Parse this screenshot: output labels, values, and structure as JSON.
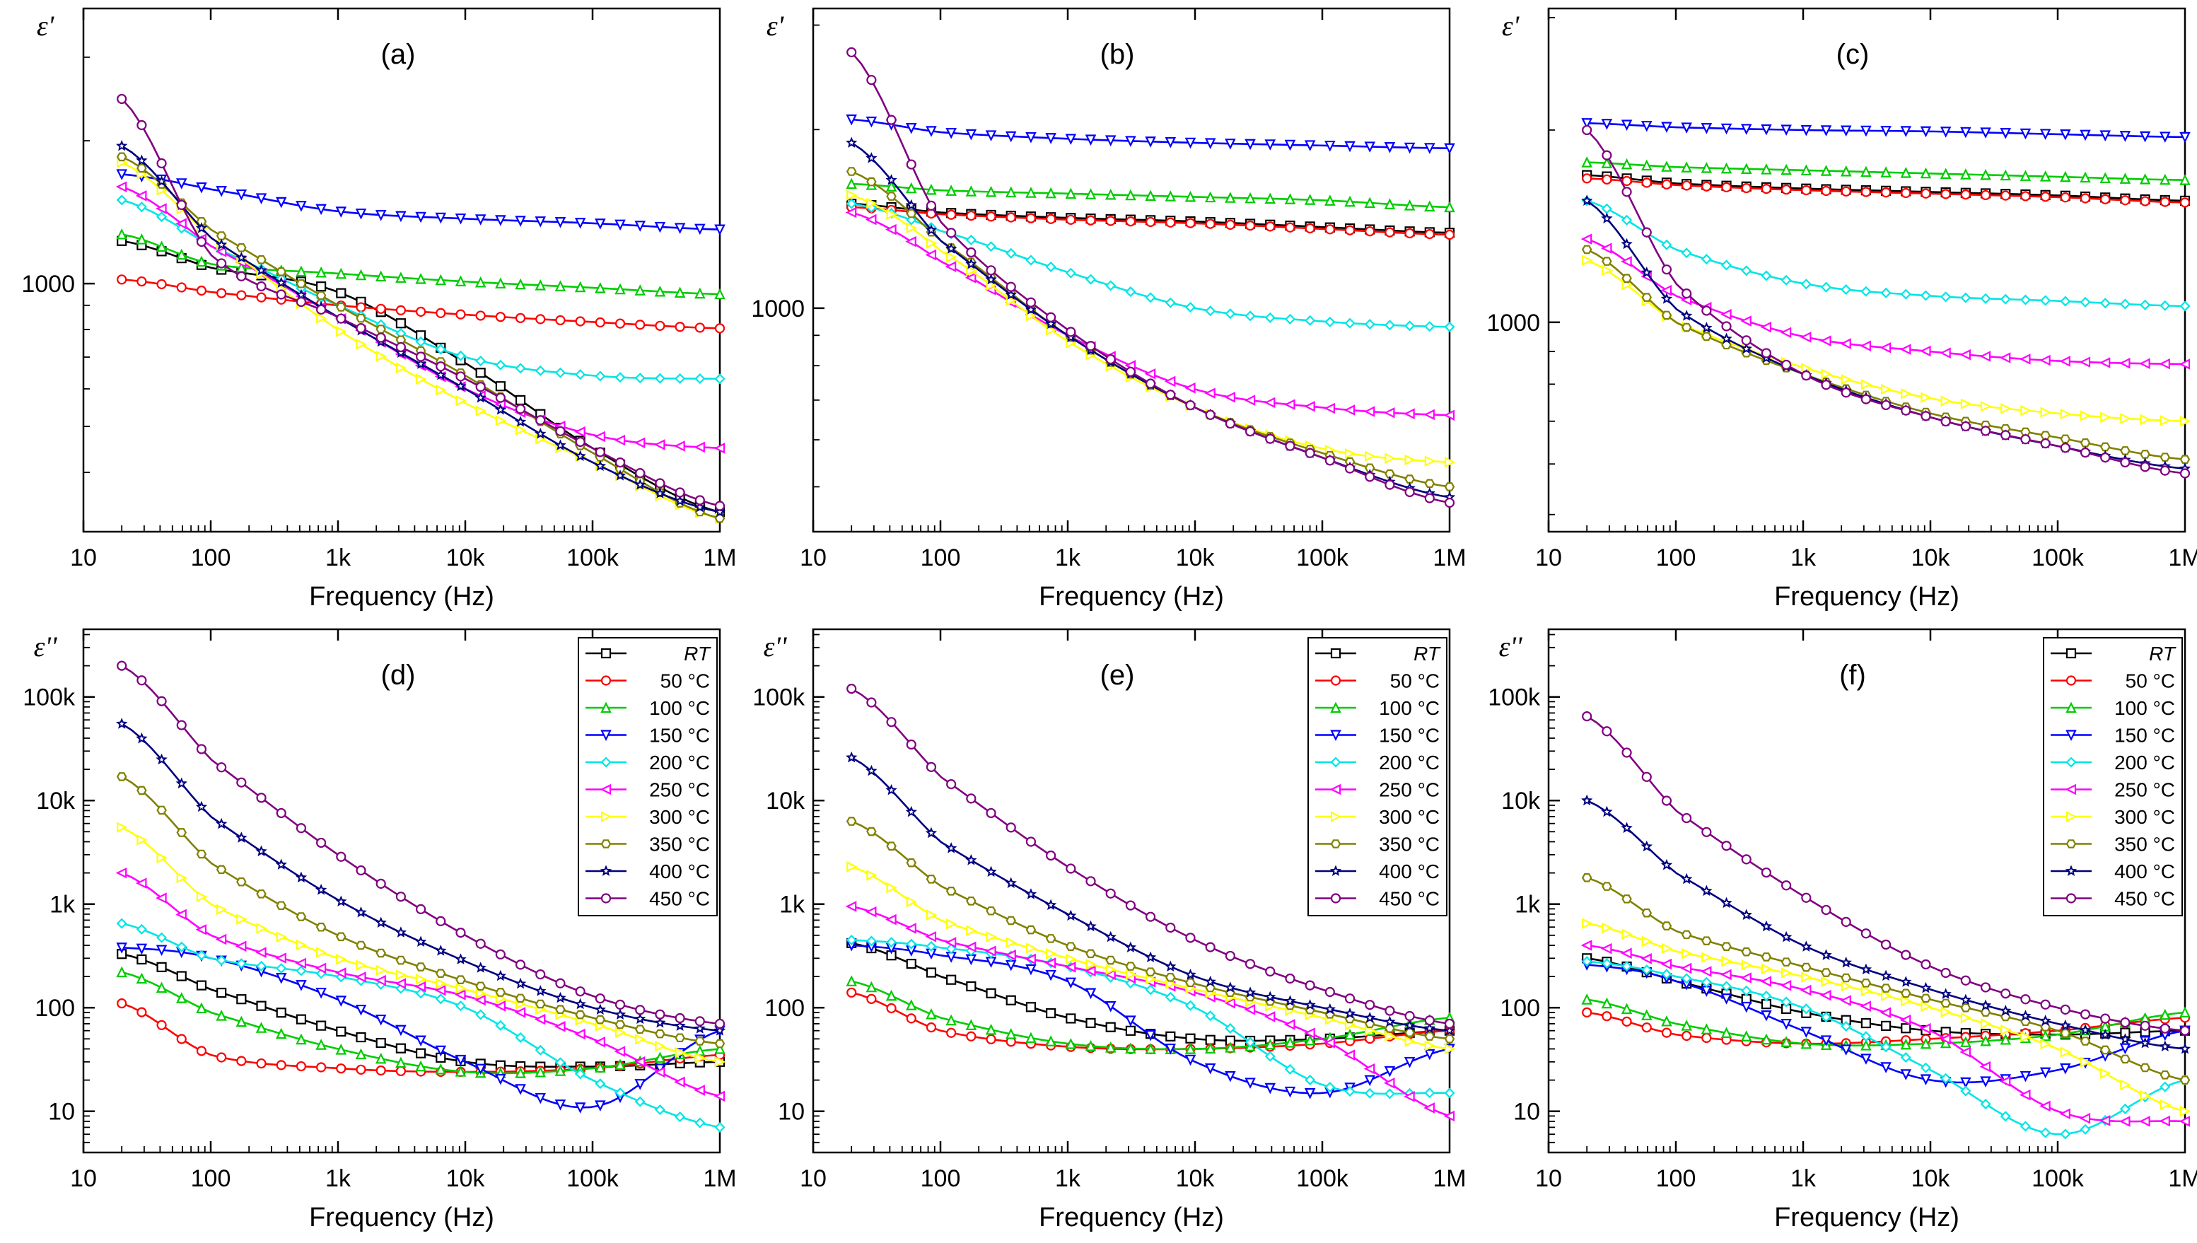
{
  "figure": {
    "colors": {
      "RT": "#000000",
      "50": "#ff0000",
      "100": "#00cc00",
      "150": "#0000ff",
      "200": "#00e5e5",
      "250": "#ff00ff",
      "300": "#ffff00",
      "350": "#808000",
      "400": "#000080",
      "450": "#800080"
    }
  },
  "chart_data": [
    {
      "panel": "(a)",
      "type": "line",
      "ylabel": "ε'",
      "xlabel": "Frequency (Hz)",
      "xscale": "log",
      "yscale": "log",
      "xlim": [
        10,
        1000000
      ],
      "ylim": [
        300,
        3800
      ],
      "xticks": [
        "10",
        "100",
        "1k",
        "10k",
        "100k",
        "1M"
      ],
      "yticks": [
        "1000"
      ],
      "x": [
        20,
        100,
        1000,
        10000,
        100000,
        1000000
      ],
      "series": [
        {
          "name": "RT",
          "values": [
            1230,
            1080,
            960,
            680,
            450,
            330
          ]
        },
        {
          "name": "50 °C",
          "values": [
            1020,
            960,
            900,
            860,
            830,
            805
          ]
        },
        {
          "name": "100 °C",
          "values": [
            1270,
            1100,
            1050,
            1010,
            980,
            950
          ]
        },
        {
          "name": "150 °C",
          "values": [
            1700,
            1580,
            1420,
            1370,
            1340,
            1300
          ]
        },
        {
          "name": "200 °C",
          "values": [
            1500,
            1200,
            900,
            700,
            640,
            630
          ]
        },
        {
          "name": "250 °C",
          "values": [
            1600,
            1200,
            850,
            600,
            480,
            450
          ]
        },
        {
          "name": "300 °C",
          "values": [
            1800,
            1250,
            800,
            560,
            420,
            320
          ]
        },
        {
          "name": "350 °C",
          "values": [
            1850,
            1300,
            900,
            640,
            440,
            320
          ]
        },
        {
          "name": "400 °C",
          "values": [
            1950,
            1250,
            850,
            600,
            420,
            330
          ]
        },
        {
          "name": "450 °C",
          "values": [
            2450,
            1150,
            850,
            630,
            450,
            340
          ]
        }
      ]
    },
    {
      "panel": "(b)",
      "type": "line",
      "ylabel": "ε'",
      "xlabel": "Frequency (Hz)",
      "xscale": "log",
      "yscale": "log",
      "xlim": [
        10,
        1000000
      ],
      "ylim": [
        420,
        3200
      ],
      "xticks": [
        "10",
        "100",
        "1k",
        "10k",
        "100k",
        "1M"
      ],
      "yticks": [
        "1000"
      ],
      "x": [
        20,
        100,
        1000,
        10000,
        100000,
        1000000
      ],
      "series": [
        {
          "name": "RT",
          "values": [
            1500,
            1450,
            1420,
            1400,
            1370,
            1340
          ]
        },
        {
          "name": "50 °C",
          "values": [
            1480,
            1440,
            1410,
            1390,
            1360,
            1330
          ]
        },
        {
          "name": "100 °C",
          "values": [
            1620,
            1580,
            1560,
            1540,
            1520,
            1480
          ]
        },
        {
          "name": "150 °C",
          "values": [
            2080,
            1980,
            1930,
            1900,
            1880,
            1860
          ]
        },
        {
          "name": "200 °C",
          "values": [
            1500,
            1350,
            1150,
            1000,
            950,
            930
          ]
        },
        {
          "name": "250 °C",
          "values": [
            1450,
            1200,
            900,
            730,
            680,
            660
          ]
        },
        {
          "name": "300 °C",
          "values": [
            1550,
            1250,
            880,
            680,
            580,
            550
          ]
        },
        {
          "name": "350 °C",
          "values": [
            1700,
            1300,
            900,
            680,
            570,
            500
          ]
        },
        {
          "name": "400 °C",
          "values": [
            1900,
            1300,
            900,
            680,
            560,
            480
          ]
        },
        {
          "name": "450 °C",
          "values": [
            2700,
            1400,
            920,
            680,
            560,
            470
          ]
        }
      ]
    },
    {
      "panel": "(c)",
      "type": "line",
      "ylabel": "ε'",
      "xlabel": "Frequency (Hz)",
      "xscale": "log",
      "yscale": "log",
      "xlim": [
        10,
        1000000
      ],
      "ylim": [
        470,
        3100
      ],
      "xticks": [
        "10",
        "100",
        "1k",
        "10k",
        "100k",
        "1M"
      ],
      "yticks": [
        "1000"
      ],
      "x": [
        20,
        100,
        1000,
        10000,
        100000,
        1000000
      ],
      "series": [
        {
          "name": "RT",
          "values": [
            1700,
            1650,
            1620,
            1600,
            1580,
            1550
          ]
        },
        {
          "name": "50 °C",
          "values": [
            1680,
            1640,
            1610,
            1590,
            1570,
            1540
          ]
        },
        {
          "name": "100 °C",
          "values": [
            1780,
            1750,
            1730,
            1710,
            1690,
            1670
          ]
        },
        {
          "name": "150 °C",
          "values": [
            2050,
            2020,
            2000,
            1990,
            1970,
            1950
          ]
        },
        {
          "name": "200 °C",
          "values": [
            1550,
            1300,
            1150,
            1100,
            1080,
            1060
          ]
        },
        {
          "name": "250 °C",
          "values": [
            1350,
            1100,
            950,
            900,
            870,
            860
          ]
        },
        {
          "name": "300 °C",
          "values": [
            1250,
            1000,
            850,
            760,
            720,
            700
          ]
        },
        {
          "name": "350 °C",
          "values": [
            1300,
            1000,
            830,
            720,
            660,
            610
          ]
        },
        {
          "name": "400 °C",
          "values": [
            1550,
            1050,
            830,
            710,
            640,
            590
          ]
        },
        {
          "name": "450 °C",
          "values": [
            2000,
            1150,
            830,
            710,
            640,
            580
          ]
        }
      ]
    },
    {
      "panel": "(d)",
      "type": "line",
      "ylabel": "ε''",
      "xlabel": "Frequency (Hz)",
      "xscale": "log",
      "yscale": "log",
      "xlim": [
        10,
        1000000
      ],
      "ylim": [
        4,
        450000
      ],
      "xticks": [
        "10",
        "100",
        "1k",
        "10k",
        "100k",
        "1M"
      ],
      "yticks": [
        "10",
        "100",
        "1k",
        "10k",
        "100k"
      ],
      "x": [
        20,
        100,
        1000,
        10000,
        100000,
        1000000
      ],
      "series": [
        {
          "name": "RT",
          "values": [
            330,
            150,
            60,
            30,
            27,
            30
          ]
        },
        {
          "name": "50 °C",
          "values": [
            110,
            35,
            26,
            24,
            26,
            35
          ]
        },
        {
          "name": "100 °C",
          "values": [
            220,
            90,
            40,
            24,
            26,
            40
          ]
        },
        {
          "name": "150 °C",
          "values": [
            380,
            300,
            120,
            30,
            11,
            60
          ]
        },
        {
          "name": "200 °C",
          "values": [
            650,
            300,
            200,
            100,
            20,
            7
          ]
        },
        {
          "name": "250 °C",
          "values": [
            2000,
            500,
            220,
            130,
            50,
            14
          ]
        },
        {
          "name": "300 °C",
          "values": [
            5500,
            1000,
            300,
            150,
            70,
            30
          ]
        },
        {
          "name": "350 °C",
          "values": [
            17000,
            2500,
            500,
            180,
            80,
            45
          ]
        },
        {
          "name": "400 °C",
          "values": [
            55000,
            7000,
            1100,
            280,
            100,
            60
          ]
        },
        {
          "name": "450 °C",
          "values": [
            200000,
            25000,
            3000,
            500,
            130,
            70
          ]
        }
      ],
      "legend": [
        "RT",
        "50 °C",
        "100 °C",
        "150 °C",
        "200 °C",
        "250 °C",
        "300 °C",
        "350 °C",
        "400 °C",
        "450 °C"
      ]
    },
    {
      "panel": "(e)",
      "type": "line",
      "ylabel": "ε''",
      "xlabel": "Frequency (Hz)",
      "xscale": "log",
      "yscale": "log",
      "xlim": [
        10,
        1000000
      ],
      "ylim": [
        4,
        450000
      ],
      "xticks": [
        "10",
        "100",
        "1k",
        "10k",
        "100k",
        "1M"
      ],
      "yticks": [
        "10",
        "100",
        "1k",
        "10k",
        "100k"
      ],
      "x": [
        20,
        100,
        1000,
        10000,
        100000,
        1000000
      ],
      "series": [
        {
          "name": "RT",
          "values": [
            420,
            200,
            80,
            50,
            50,
            60
          ]
        },
        {
          "name": "50 °C",
          "values": [
            140,
            60,
            42,
            40,
            45,
            60
          ]
        },
        {
          "name": "100 °C",
          "values": [
            180,
            80,
            45,
            40,
            50,
            80
          ]
        },
        {
          "name": "150 °C",
          "values": [
            400,
            320,
            180,
            30,
            15,
            40
          ]
        },
        {
          "name": "200 °C",
          "values": [
            450,
            380,
            250,
            100,
            18,
            15
          ]
        },
        {
          "name": "250 °C",
          "values": [
            950,
            450,
            250,
            140,
            50,
            9
          ]
        },
        {
          "name": "300 °C",
          "values": [
            2300,
            700,
            300,
            150,
            80,
            40
          ]
        },
        {
          "name": "350 °C",
          "values": [
            6300,
            1500,
            400,
            170,
            90,
            50
          ]
        },
        {
          "name": "400 °C",
          "values": [
            26000,
            4000,
            800,
            200,
            100,
            60
          ]
        },
        {
          "name": "450 °C",
          "values": [
            120000,
            17000,
            2300,
            450,
            150,
            70
          ]
        }
      ],
      "legend": [
        "RT",
        "50 °C",
        "100 °C",
        "150 °C",
        "200 °C",
        "250 °C",
        "300 °C",
        "350 °C",
        "400 °C",
        "450 °C"
      ]
    },
    {
      "panel": "(f)",
      "type": "line",
      "ylabel": "ε''",
      "xlabel": "Frequency (Hz)",
      "xscale": "log",
      "yscale": "log",
      "xlim": [
        10,
        1000000
      ],
      "ylim": [
        4,
        450000
      ],
      "xticks": [
        "10",
        "100",
        "1k",
        "10k",
        "100k",
        "1M"
      ],
      "yticks": [
        "10",
        "100",
        "1k",
        "10k",
        "100k"
      ],
      "x": [
        20,
        100,
        1000,
        10000,
        100000,
        1000000
      ],
      "series": [
        {
          "name": "RT",
          "values": [
            300,
            180,
            90,
            60,
            55,
            60
          ]
        },
        {
          "name": "50 °C",
          "values": [
            90,
            55,
            45,
            50,
            60,
            80
          ]
        },
        {
          "name": "100 °C",
          "values": [
            120,
            70,
            45,
            45,
            55,
            90
          ]
        },
        {
          "name": "150 °C",
          "values": [
            260,
            180,
            60,
            20,
            25,
            60
          ]
        },
        {
          "name": "200 °C",
          "values": [
            280,
            200,
            100,
            25,
            6,
            20
          ]
        },
        {
          "name": "250 °C",
          "values": [
            400,
            250,
            150,
            60,
            10,
            8
          ]
        },
        {
          "name": "300 °C",
          "values": [
            650,
            350,
            200,
            100,
            40,
            10
          ]
        },
        {
          "name": "350 °C",
          "values": [
            1800,
            550,
            250,
            120,
            60,
            20
          ]
        },
        {
          "name": "400 °C",
          "values": [
            10000,
            2000,
            400,
            150,
            70,
            40
          ]
        },
        {
          "name": "450 °C",
          "values": [
            65000,
            8000,
            1200,
            250,
            100,
            60
          ]
        }
      ],
      "legend": [
        "RT",
        "50 °C",
        "100 °C",
        "150 °C",
        "200 °C",
        "250 °C",
        "300 °C",
        "350 °C",
        "400 °C",
        "450 °C"
      ]
    }
  ]
}
